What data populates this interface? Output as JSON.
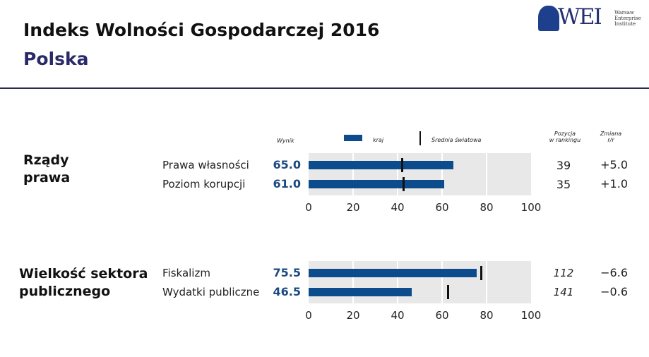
{
  "header": {
    "title": "Indeks Wolności Gospodarczej 2016",
    "subtitle": "Polska"
  },
  "logo": {
    "text": "WEI",
    "lines": [
      "Warsaw",
      "Enterprise",
      "Institute"
    ]
  },
  "legend": {
    "score_label": "Wynik",
    "country_label": "kraj",
    "world_label": "Średnia światowa",
    "rank_label": [
      "Pozycja",
      "w rankingu"
    ],
    "change_label": [
      "Zmiana",
      "r/r"
    ]
  },
  "colors": {
    "bar": "#0d4c8c",
    "marker": "#111111",
    "background": "#e8e8e8"
  },
  "chart_data": [
    {
      "type": "bar",
      "orientation": "horizontal",
      "group": [
        "Rządy",
        "prawa"
      ],
      "categories": [
        "Prawa własności",
        "Poziom korupcji"
      ],
      "series": [
        {
          "name": "kraj",
          "values": [
            65.0,
            61.0
          ]
        },
        {
          "name": "Średnia światowa",
          "values": [
            41.9,
            42.6
          ]
        }
      ],
      "value_labels": [
        "65.0",
        "61.0"
      ],
      "ranks": [
        "39",
        "35"
      ],
      "changes": [
        "+5.0",
        "+1.0"
      ],
      "xlim": [
        0,
        100
      ],
      "ticks": [
        "0",
        "20",
        "40",
        "60",
        "80",
        "100"
      ],
      "grid": true
    },
    {
      "type": "bar",
      "orientation": "horizontal",
      "group": [
        "Wielkość sektora",
        "publicznego"
      ],
      "categories": [
        "Fiskalizm",
        "Wydatki publiczne"
      ],
      "series": [
        {
          "name": "kraj",
          "values": [
            75.5,
            46.5
          ]
        },
        {
          "name": "Średnia światowa",
          "values": [
            77.6,
            62.4
          ]
        }
      ],
      "value_labels": [
        "75.5",
        "46.5"
      ],
      "ranks": [
        "112",
        "141"
      ],
      "changes": [
        "−6.6",
        "−0.6"
      ],
      "xlim": [
        0,
        100
      ],
      "ticks": [
        "0",
        "20",
        "40",
        "60",
        "80",
        "100"
      ],
      "grid": true
    }
  ]
}
